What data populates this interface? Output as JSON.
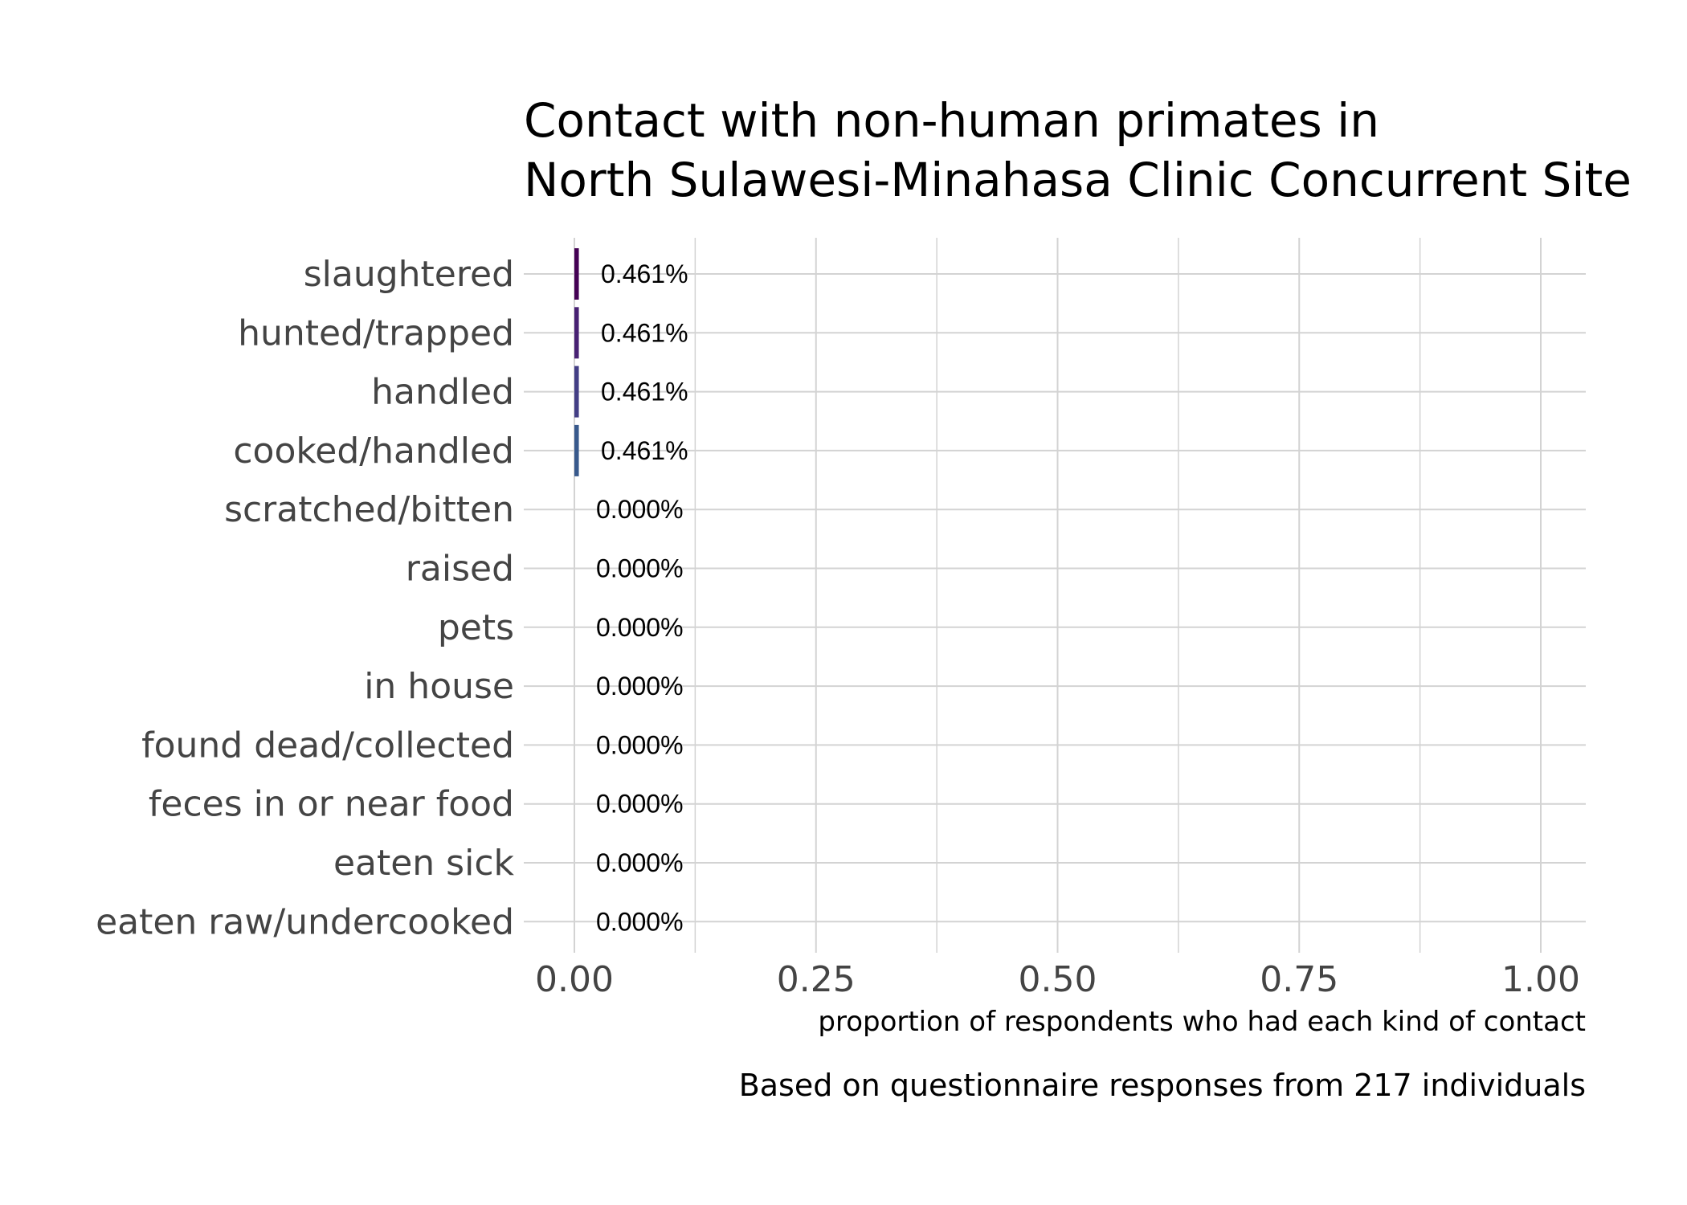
{
  "chart_data": {
    "type": "bar",
    "orientation": "horizontal",
    "title": "Contact with non-human primates in",
    "title_line2": "North Sulawesi-Minahasa Clinic Concurrent Site",
    "categories": [
      "slaughtered",
      "hunted/trapped",
      "handled",
      "cooked/handled",
      "scratched/bitten",
      "raised",
      "pets",
      "in house",
      "found dead/collected",
      "feces in or near food",
      "eaten sick",
      "eaten raw/undercooked"
    ],
    "values": [
      0.00461,
      0.00461,
      0.00461,
      0.00461,
      0,
      0,
      0,
      0,
      0,
      0,
      0,
      0
    ],
    "value_labels": [
      "0.461%",
      "0.461%",
      "0.461%",
      "0.461%",
      "0.000%",
      "0.000%",
      "0.000%",
      "0.000%",
      "0.000%",
      "0.000%",
      "0.000%",
      "0.000%"
    ],
    "bar_colors": [
      "#440154",
      "#482173",
      "#433e85",
      "#38598c"
    ],
    "xlabel": "proportion of respondents who had each kind of contact",
    "ylabel": "",
    "xlim": [
      0,
      1
    ],
    "x_ticks": [
      0,
      0.25,
      0.5,
      0.75,
      1
    ],
    "x_tick_labels": [
      "0.00",
      "0.25",
      "0.50",
      "0.75",
      "1.00"
    ],
    "caption": "Based on questionnaire responses from 217 individuals",
    "grid": true,
    "legend": "none"
  }
}
